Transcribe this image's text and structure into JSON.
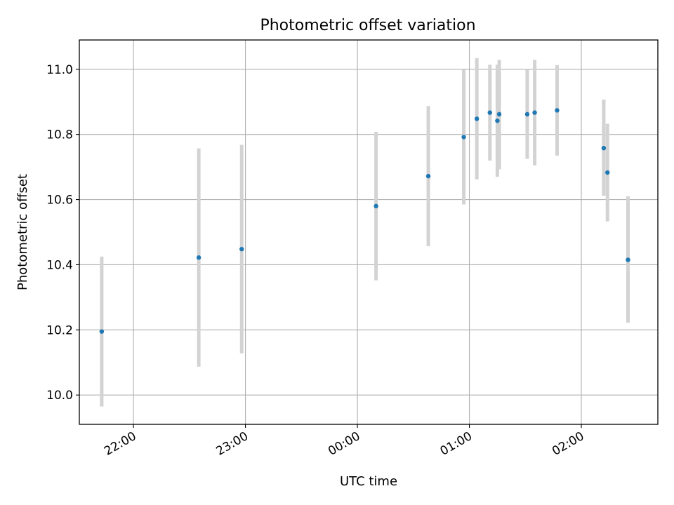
{
  "chart_data": {
    "type": "scatter",
    "title": "Photometric offset variation",
    "xlabel": "UTC time",
    "ylabel": "Photometric offset",
    "x_ticks": [
      "22:00",
      "23:00",
      "00:00",
      "01:00",
      "02:00"
    ],
    "y_ticks": [
      "10.0",
      "10.2",
      "10.4",
      "10.6",
      "10.8",
      "11.0"
    ],
    "xlim": [
      "21:31",
      "02:41"
    ],
    "ylim": [
      9.91,
      11.09
    ],
    "grid": true,
    "series": [
      {
        "marker_color": "#1f77b4",
        "errorbar_color": "#d3d3d3",
        "points": [
          {
            "t": "21:43",
            "y": 10.195,
            "lo": 9.965,
            "hi": 10.425
          },
          {
            "t": "22:35",
            "y": 10.422,
            "lo": 10.087,
            "hi": 10.757
          },
          {
            "t": "22:58",
            "y": 10.448,
            "lo": 10.128,
            "hi": 10.768
          },
          {
            "t": "00:10",
            "y": 10.58,
            "lo": 10.352,
            "hi": 10.808
          },
          {
            "t": "00:38",
            "y": 10.672,
            "lo": 10.457,
            "hi": 10.887
          },
          {
            "t": "00:57",
            "y": 10.792,
            "lo": 10.585,
            "hi": 10.999
          },
          {
            "t": "01:04",
            "y": 10.848,
            "lo": 10.662,
            "hi": 11.034
          },
          {
            "t": "01:11",
            "y": 10.867,
            "lo": 10.72,
            "hi": 11.014
          },
          {
            "t": "01:15",
            "y": 10.842,
            "lo": 10.67,
            "hi": 11.014
          },
          {
            "t": "01:16",
            "y": 10.862,
            "lo": 10.693,
            "hi": 11.029
          },
          {
            "t": "01:31",
            "y": 10.862,
            "lo": 10.725,
            "hi": 10.999
          },
          {
            "t": "01:35",
            "y": 10.867,
            "lo": 10.705,
            "hi": 11.029
          },
          {
            "t": "01:47",
            "y": 10.874,
            "lo": 10.735,
            "hi": 11.013
          },
          {
            "t": "02:12",
            "y": 10.758,
            "lo": 10.612,
            "hi": 10.907
          },
          {
            "t": "02:14",
            "y": 10.683,
            "lo": 10.533,
            "hi": 10.833
          },
          {
            "t": "02:25",
            "y": 10.415,
            "lo": 10.222,
            "hi": 10.61
          }
        ]
      }
    ]
  }
}
